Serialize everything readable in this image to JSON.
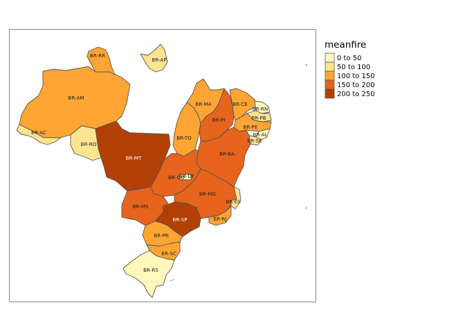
{
  "legend": {
    "title": "meanfire",
    "classes": [
      {
        "label": "0 to 50",
        "color": "#fff7bc"
      },
      {
        "label": "50 to 100",
        "color": "#fee391"
      },
      {
        "label": "100 to 150",
        "color": "#fea534"
      },
      {
        "label": "150 to 200",
        "color": "#e6641c"
      },
      {
        "label": "200 to 250",
        "color": "#b24004"
      }
    ]
  },
  "states": [
    {
      "code": "BR-AM",
      "class": 2
    },
    {
      "code": "BR-RR",
      "class": 2
    },
    {
      "code": "BR-AP",
      "class": 1
    },
    {
      "code": "BR-AC",
      "class": 1
    },
    {
      "code": "BR-RO",
      "class": 1
    },
    {
      "code": "BR-MT",
      "class": 4
    },
    {
      "code": "BR-MA",
      "class": 2
    },
    {
      "code": "BR-TO",
      "class": 2
    },
    {
      "code": "BR-PI",
      "class": 3
    },
    {
      "code": "BR-CE",
      "class": 2
    },
    {
      "code": "BR-RN",
      "class": 0
    },
    {
      "code": "BR-PB",
      "class": 1
    },
    {
      "code": "BR-PE",
      "class": 2
    },
    {
      "code": "BR-AL",
      "class": 0
    },
    {
      "code": "BR-SE",
      "class": 1
    },
    {
      "code": "BR-BA",
      "class": 3
    },
    {
      "code": "BR-GO",
      "class": 3
    },
    {
      "code": "BR-DF",
      "class": 0
    },
    {
      "code": "BR-MG",
      "class": 3
    },
    {
      "code": "BR-ES",
      "class": 1
    },
    {
      "code": "BR-MS",
      "class": 3
    },
    {
      "code": "BR-SP",
      "class": 4
    },
    {
      "code": "BR-RJ",
      "class": 2
    },
    {
      "code": "BR-PR",
      "class": 2
    },
    {
      "code": "BR-SC",
      "class": 2
    },
    {
      "code": "BR-RS",
      "class": 0
    }
  ]
}
